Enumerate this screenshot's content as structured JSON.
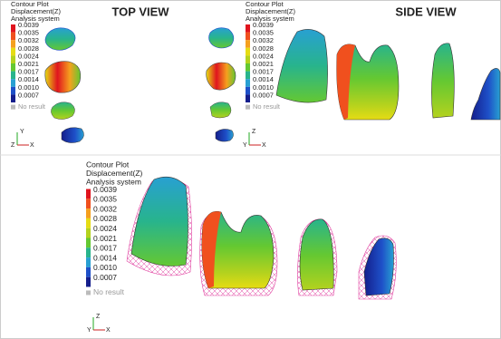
{
  "legend_colors": [
    "#e0141e",
    "#f0501e",
    "#f5a01e",
    "#e6dc14",
    "#b4d21e",
    "#64c832",
    "#28b48c",
    "#28a0d2",
    "#1e50c8",
    "#141e8c"
  ],
  "panels": [
    {
      "title": "TOP VIEW",
      "legend": {
        "lines": [
          "Contour Plot",
          "Displacement(Z)",
          "Analysis system"
        ],
        "levels": [
          "0.0039",
          "0.0035",
          "0.0032",
          "0.0028",
          "0.0024",
          "0.0021",
          "0.0017",
          "0.0014",
          "0.0010",
          "0.0007"
        ],
        "no_result": "No result"
      },
      "axes": {
        "vertical": "Y",
        "origin": "Z",
        "horizontal": "X"
      }
    },
    {
      "title": "SIDE VIEW",
      "legend": {
        "lines": [
          "Contour Plot",
          "Displacement(Z)",
          "Analysis system"
        ],
        "levels": [
          "0.0039",
          "0.0035",
          "0.0032",
          "0.0028",
          "0.0024",
          "0.0021",
          "0.0017",
          "0.0014",
          "0.0010",
          "0.0007"
        ],
        "no_result": "No result"
      },
      "axes": {
        "vertical": "Z",
        "origin": "Y",
        "horizontal": "X"
      }
    },
    {
      "legend": {
        "lines": [
          "Contour Plot",
          "Displacement(Z)",
          "Analysis system"
        ],
        "levels": [
          "0.0039",
          "0.0035",
          "0.0032",
          "0.0028",
          "0.0024",
          "0.0021",
          "0.0017",
          "0.0014",
          "0.0010",
          "0.0007"
        ],
        "no_result": "No result"
      },
      "axes": {
        "vertical": "Z",
        "origin": "Y",
        "horizontal": "X"
      }
    }
  ]
}
